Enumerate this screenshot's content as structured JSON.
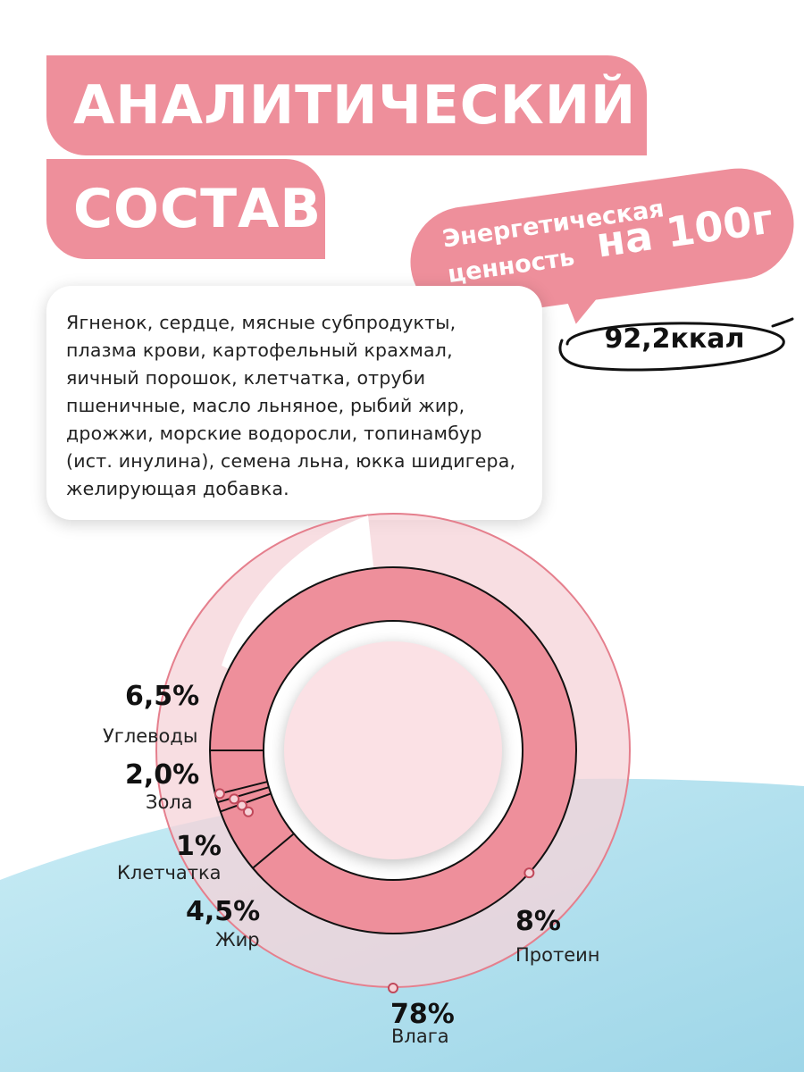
{
  "header": {
    "title_line1": "АНАЛИТИЧЕСКИЙ",
    "title_line2": "СОСТАВ"
  },
  "energy": {
    "label_line1": "Энергетическая",
    "label_line2": "ценность",
    "per": "на 100г",
    "value": "92,2ккал"
  },
  "ingredients": "Ягненок, сердце, мясные субпродукты, плазма крови, картофельный крахмал, яичный порошок, клетчатка, отруби пшеничные, масло льняное, рыбий жир, дрожжи, морские водоросли, топинамбур (ист. инулина), семена льна, юкка шидигера, желирующая добавка.",
  "colors": {
    "accent": "#ee8f9b",
    "accent_light": "#f6d3d8",
    "accent_pale": "#fadfe3",
    "wave": "#a9ddec"
  },
  "chart_data": {
    "type": "pie",
    "series": [
      {
        "label": "Влага",
        "pct_text": "78%",
        "value": 78
      },
      {
        "label": "Протеин",
        "pct_text": "8%",
        "value": 8
      },
      {
        "label": "Углеводы",
        "pct_text": "6,5%",
        "value": 6.5
      },
      {
        "label": "Жир",
        "pct_text": "4,5%",
        "value": 4.5
      },
      {
        "label": "Зола",
        "pct_text": "2,0%",
        "value": 2.0
      },
      {
        "label": "Клетчатка",
        "pct_text": "1%",
        "value": 1
      }
    ]
  }
}
